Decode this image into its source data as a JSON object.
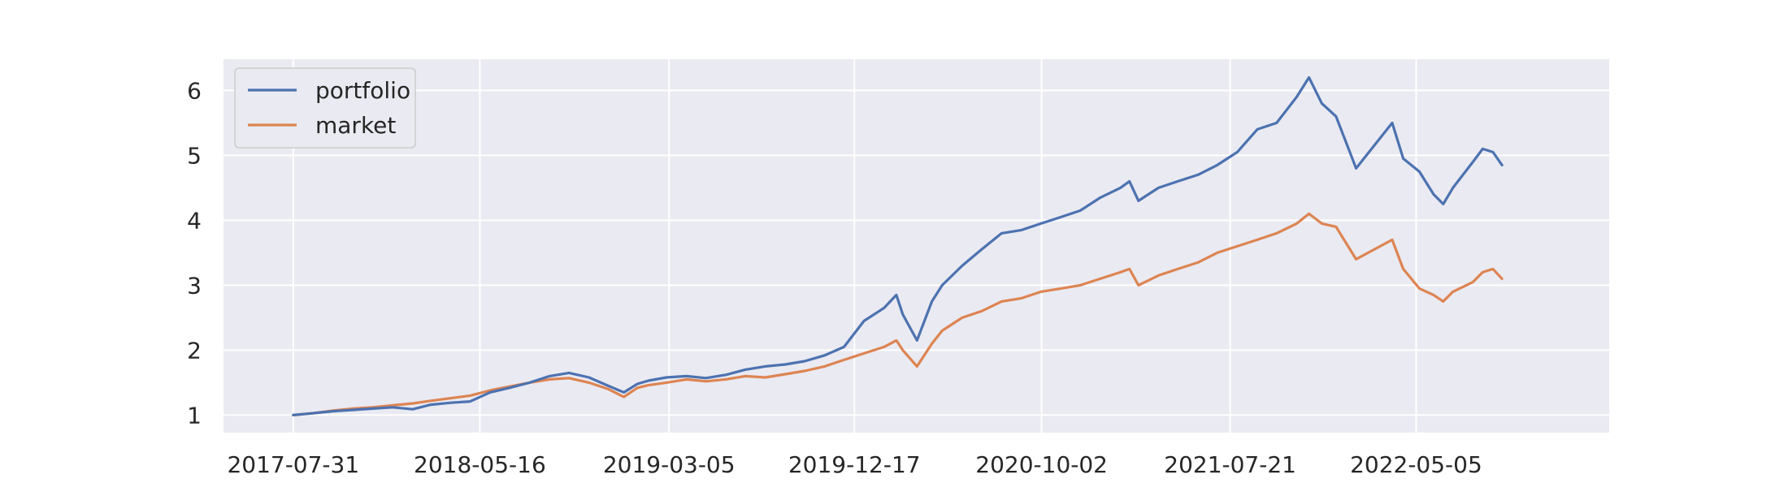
{
  "chart_data": {
    "type": "line",
    "title": "",
    "xlabel": "",
    "ylabel": "",
    "x_tick_labels": [
      "2017-07-31",
      "2018-05-16",
      "2019-03-05",
      "2019-12-17",
      "2020-10-02",
      "2021-07-21",
      "2022-05-05"
    ],
    "y_tick_labels": [
      "1",
      "2",
      "3",
      "4",
      "5",
      "6"
    ],
    "xlim": [
      "2017-04-14",
      "2023-02-28"
    ],
    "ylim": [
      0.73,
      6.48
    ],
    "grid": true,
    "legend_position": "upper-left",
    "colors": {
      "portfolio": "#4c72b0",
      "market": "#dd8452",
      "plot_background": "#eaeaf2",
      "grid": "#ffffff"
    },
    "series": [
      {
        "name": "portfolio",
        "x": [
          "2017-07-31",
          "2017-09-01",
          "2017-10-01",
          "2017-11-01",
          "2017-12-01",
          "2018-01-01",
          "2018-02-01",
          "2018-03-01",
          "2018-04-01",
          "2018-05-01",
          "2018-06-01",
          "2018-07-01",
          "2018-08-01",
          "2018-09-01",
          "2018-10-01",
          "2018-11-01",
          "2018-12-01",
          "2018-12-25",
          "2019-01-15",
          "2019-02-01",
          "2019-03-01",
          "2019-04-01",
          "2019-05-01",
          "2019-06-01",
          "2019-07-01",
          "2019-08-01",
          "2019-09-01",
          "2019-10-01",
          "2019-11-01",
          "2019-12-01",
          "2020-01-01",
          "2020-02-01",
          "2020-02-20",
          "2020-03-01",
          "2020-03-23",
          "2020-04-15",
          "2020-05-01",
          "2020-06-01",
          "2020-07-01",
          "2020-08-01",
          "2020-09-01",
          "2020-10-01",
          "2020-11-01",
          "2020-12-01",
          "2021-01-01",
          "2021-02-01",
          "2021-02-15",
          "2021-03-01",
          "2021-04-01",
          "2021-05-01",
          "2021-06-01",
          "2021-07-01",
          "2021-08-01",
          "2021-09-01",
          "2021-10-01",
          "2021-11-01",
          "2021-11-20",
          "2021-12-10",
          "2022-01-01",
          "2022-02-01",
          "2022-03-01",
          "2022-03-29",
          "2022-04-15",
          "2022-05-10",
          "2022-06-01",
          "2022-06-16",
          "2022-07-01",
          "2022-08-01",
          "2022-08-16",
          "2022-09-01",
          "2022-09-15"
        ],
        "y": [
          1.0,
          1.03,
          1.06,
          1.08,
          1.1,
          1.12,
          1.09,
          1.16,
          1.19,
          1.21,
          1.35,
          1.42,
          1.5,
          1.6,
          1.65,
          1.58,
          1.45,
          1.35,
          1.48,
          1.53,
          1.58,
          1.6,
          1.57,
          1.62,
          1.7,
          1.75,
          1.78,
          1.83,
          1.92,
          2.05,
          2.45,
          2.65,
          2.85,
          2.55,
          2.15,
          2.75,
          3.0,
          3.3,
          3.55,
          3.8,
          3.85,
          3.95,
          4.05,
          4.15,
          4.35,
          4.5,
          4.6,
          4.3,
          4.5,
          4.6,
          4.7,
          4.85,
          5.05,
          5.4,
          5.5,
          5.9,
          6.2,
          5.8,
          5.6,
          4.8,
          5.15,
          5.5,
          4.95,
          4.75,
          4.4,
          4.25,
          4.5,
          4.9,
          5.1,
          5.05,
          4.85
        ]
      },
      {
        "name": "market",
        "x": [
          "2017-07-31",
          "2017-09-01",
          "2017-10-01",
          "2017-11-01",
          "2017-12-01",
          "2018-01-01",
          "2018-02-01",
          "2018-03-01",
          "2018-04-01",
          "2018-05-01",
          "2018-06-01",
          "2018-07-01",
          "2018-08-01",
          "2018-09-01",
          "2018-10-01",
          "2018-11-01",
          "2018-12-01",
          "2018-12-25",
          "2019-01-15",
          "2019-02-01",
          "2019-03-01",
          "2019-04-01",
          "2019-05-01",
          "2019-06-01",
          "2019-07-01",
          "2019-08-01",
          "2019-09-01",
          "2019-10-01",
          "2019-11-01",
          "2019-12-01",
          "2020-01-01",
          "2020-02-01",
          "2020-02-20",
          "2020-03-01",
          "2020-03-23",
          "2020-04-15",
          "2020-05-01",
          "2020-06-01",
          "2020-07-01",
          "2020-08-01",
          "2020-09-01",
          "2020-10-01",
          "2020-11-01",
          "2020-12-01",
          "2021-01-01",
          "2021-02-01",
          "2021-02-15",
          "2021-03-01",
          "2021-04-01",
          "2021-05-01",
          "2021-06-01",
          "2021-07-01",
          "2021-08-01",
          "2021-09-01",
          "2021-10-01",
          "2021-11-01",
          "2021-11-20",
          "2021-12-10",
          "2022-01-01",
          "2022-02-01",
          "2022-03-01",
          "2022-03-29",
          "2022-04-15",
          "2022-05-10",
          "2022-06-01",
          "2022-06-16",
          "2022-07-01",
          "2022-08-01",
          "2022-08-16",
          "2022-09-01",
          "2022-09-15"
        ],
        "y": [
          1.0,
          1.03,
          1.07,
          1.1,
          1.12,
          1.15,
          1.18,
          1.22,
          1.26,
          1.3,
          1.38,
          1.44,
          1.5,
          1.55,
          1.57,
          1.5,
          1.4,
          1.28,
          1.42,
          1.46,
          1.5,
          1.55,
          1.52,
          1.55,
          1.6,
          1.58,
          1.63,
          1.68,
          1.75,
          1.85,
          1.95,
          2.05,
          2.15,
          2.0,
          1.75,
          2.1,
          2.3,
          2.5,
          2.6,
          2.75,
          2.8,
          2.9,
          2.95,
          3.0,
          3.1,
          3.2,
          3.25,
          3.0,
          3.15,
          3.25,
          3.35,
          3.5,
          3.6,
          3.7,
          3.8,
          3.95,
          4.1,
          3.95,
          3.9,
          3.4,
          3.55,
          3.7,
          3.25,
          2.95,
          2.85,
          2.75,
          2.9,
          3.05,
          3.2,
          3.25,
          3.1
        ]
      }
    ]
  },
  "legend": {
    "items": [
      {
        "label": "portfolio"
      },
      {
        "label": "market"
      }
    ]
  }
}
